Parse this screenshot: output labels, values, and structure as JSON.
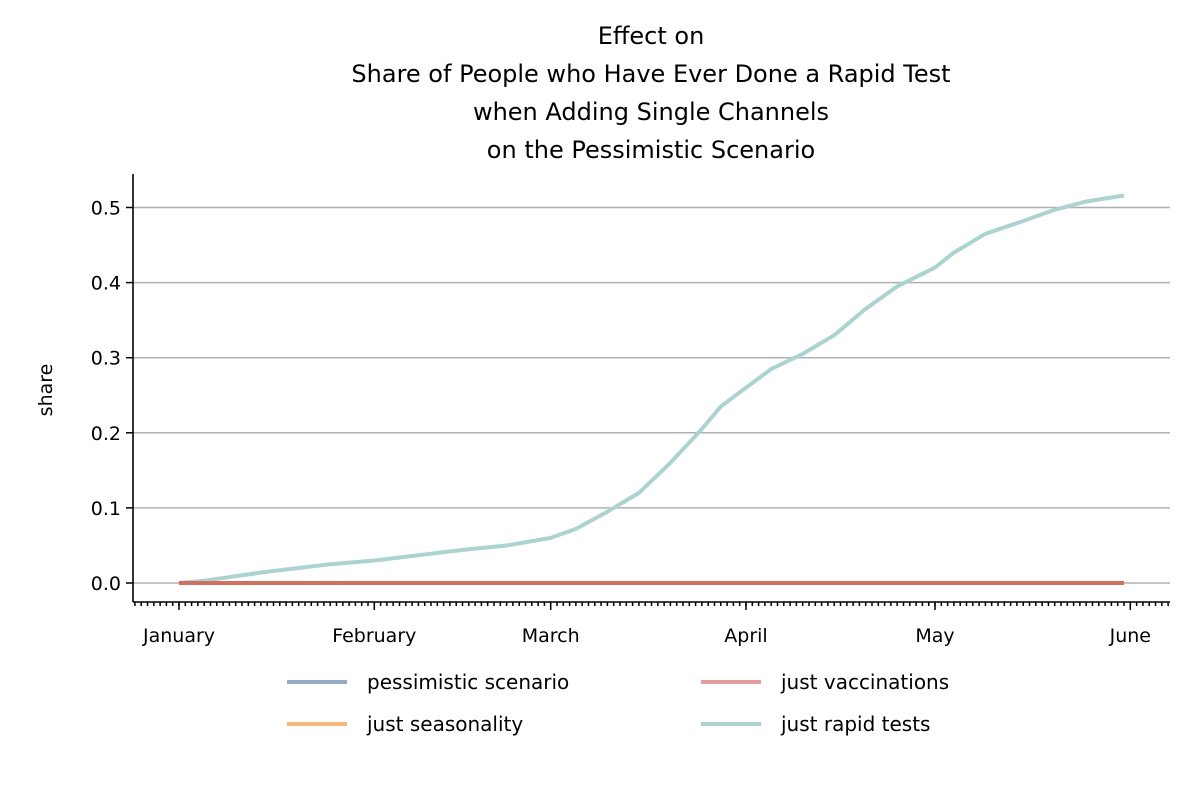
{
  "chart_data": {
    "type": "line",
    "title_lines": [
      "Effect on",
      "Share of People who Have Ever Done a Rapid Test",
      "when Adding Single Channels",
      "on the Pessimistic Scenario"
    ],
    "xlabel": "",
    "ylabel": "share",
    "x_range": [
      "2021-01-01",
      "2021-06-05"
    ],
    "ylim": [
      -0.025,
      0.545
    ],
    "y_ticks": [
      0.0,
      0.1,
      0.2,
      0.3,
      0.4,
      0.5
    ],
    "y_tick_labels": [
      "0.0",
      "0.1",
      "0.2",
      "0.3",
      "0.4",
      "0.5"
    ],
    "x_ticks": [
      "2021-01-01",
      "2021-02-01",
      "2021-03-01",
      "2021-04-01",
      "2021-05-01",
      "2021-06-01"
    ],
    "x_tick_labels": [
      "January",
      "February",
      "March",
      "April",
      "May",
      "June"
    ],
    "grid": "horizontal",
    "legend_position": "bottom",
    "series": [
      {
        "name": "pessimistic scenario",
        "color": "#95aec6",
        "x": [
          "2021-01-01",
          "2021-05-31"
        ],
        "y": [
          0.0,
          0.0
        ]
      },
      {
        "name": "just seasonality",
        "color": "#f5b97a",
        "x": [
          "2021-01-01",
          "2021-05-31"
        ],
        "y": [
          0.0,
          0.0
        ]
      },
      {
        "name": "just vaccinations",
        "color": "#e59c9f",
        "x": [
          "2021-01-01",
          "2021-05-31"
        ],
        "y": [
          0.0,
          0.0
        ]
      },
      {
        "name": "just rapid tests",
        "color": "#acd3cf",
        "x": [
          "2021-01-01",
          "2021-01-05",
          "2021-01-10",
          "2021-01-15",
          "2021-01-20",
          "2021-01-25",
          "2021-02-01",
          "2021-02-05",
          "2021-02-10",
          "2021-02-15",
          "2021-02-22",
          "2021-03-01",
          "2021-03-05",
          "2021-03-10",
          "2021-03-15",
          "2021-03-20",
          "2021-03-25",
          "2021-03-28",
          "2021-04-01",
          "2021-04-05",
          "2021-04-10",
          "2021-04-15",
          "2021-04-20",
          "2021-04-25",
          "2021-05-01",
          "2021-05-04",
          "2021-05-09",
          "2021-05-15",
          "2021-05-20",
          "2021-05-25",
          "2021-05-31"
        ],
        "y": [
          0.0,
          0.003,
          0.009,
          0.015,
          0.02,
          0.025,
          0.03,
          0.034,
          0.039,
          0.044,
          0.05,
          0.06,
          0.072,
          0.095,
          0.12,
          0.16,
          0.205,
          0.235,
          0.26,
          0.285,
          0.305,
          0.33,
          0.365,
          0.395,
          0.42,
          0.44,
          0.465,
          0.482,
          0.497,
          0.508,
          0.516
        ]
      }
    ],
    "overlay_line": {
      "color": "#d07060",
      "x": [
        "2021-01-01",
        "2021-05-31"
      ],
      "y": [
        0.0,
        0.0
      ]
    }
  }
}
